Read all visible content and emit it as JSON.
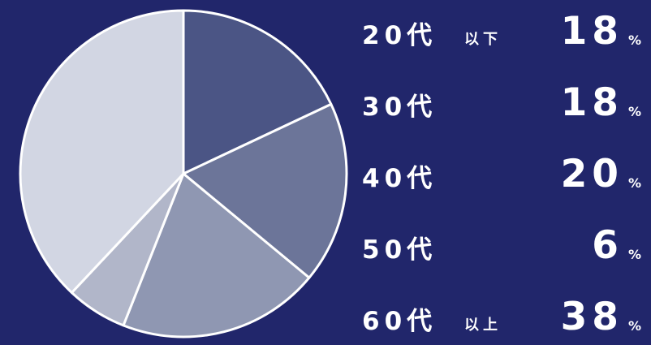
{
  "chart_data": {
    "type": "pie",
    "title": "",
    "slices": [
      {
        "label": "20代",
        "suffix": "以下",
        "value": 18,
        "color": "#4b5585"
      },
      {
        "label": "30代",
        "suffix": "",
        "value": 18,
        "color": "#6c7599"
      },
      {
        "label": "40代",
        "suffix": "",
        "value": 20,
        "color": "#8f97b2"
      },
      {
        "label": "50代",
        "suffix": "",
        "value": 6,
        "color": "#b1b6c9"
      },
      {
        "label": "60代",
        "suffix": "以上",
        "value": 38,
        "color": "#d2d6e3"
      }
    ],
    "unit": "%",
    "start_angle_deg": 0,
    "direction": "clockwise",
    "legend_position": "right",
    "slice_border_color": "#ffffff",
    "background": "#21266b"
  }
}
